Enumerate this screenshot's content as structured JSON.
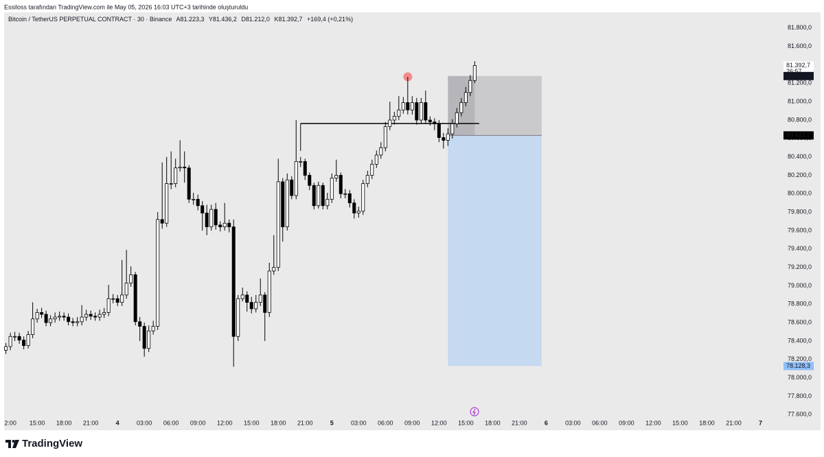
{
  "header": {
    "caption": "Essiloss tarafından TradingView.com ile May 05, 2026 16:03 UTC+3 tarihinde oluşturuldu"
  },
  "footer": {
    "brand": "TradingView"
  },
  "chart_data": {
    "type": "candlestick",
    "title": "Bitcoin / TetherUS PERPETUAL CONTRACT · 30 · Binance",
    "ohlc_legend": [
      "A81.223,3",
      "Y81.436,2",
      "D81.212,0",
      "K81.392,7"
    ],
    "change": "+169,4 (+0,21%)",
    "up_color": "#ffffff",
    "down_color": "#000000",
    "wick_color": "#000000",
    "x": [
      11.5,
      12,
      12.5,
      13,
      13.5,
      14,
      14.5,
      15,
      15.5,
      16,
      16.5,
      17,
      17.5,
      18,
      18.5,
      19,
      19.5,
      20,
      20.5,
      21,
      21.5,
      22,
      22.5,
      23,
      23.5,
      24,
      24.5,
      25,
      25.5,
      26,
      26.5,
      27,
      27.5,
      28,
      28.5,
      29,
      29.5,
      30,
      30.5,
      31,
      31.5,
      32,
      32.5,
      33,
      33.5,
      34,
      34.5,
      35,
      35.5,
      36,
      36.5,
      37,
      37.5,
      38,
      38.5,
      39,
      39.5,
      40,
      40.5,
      41,
      41.5,
      42,
      42.5,
      43,
      43.5,
      44,
      44.5,
      45,
      45.5,
      46,
      46.5,
      47,
      47.5,
      48,
      48.5,
      49,
      49.5,
      50,
      50.5,
      51,
      51.5,
      52,
      52.5,
      53,
      53.5,
      54,
      54.5,
      55,
      55.5,
      56,
      56.5,
      57,
      57.5,
      58,
      58.5,
      59,
      59.5,
      60,
      60.5,
      61,
      61.5,
      62,
      62.5,
      63,
      63.5,
      64
    ],
    "open": [
      78300,
      78340,
      78450,
      78450,
      78410,
      78350,
      78470,
      78640,
      78710,
      78690,
      78600,
      78640,
      78660,
      78670,
      78660,
      78610,
      78600,
      78610,
      78660,
      78690,
      78670,
      78660,
      78690,
      78710,
      78860,
      78860,
      78820,
      78900,
      79030,
      79120,
      78610,
      78560,
      78320,
      78510,
      78560,
      79720,
      79680,
      80110,
      80110,
      80280,
      80290,
      80280,
      79940,
      79940,
      79870,
      79790,
      79640,
      79830,
      79660,
      79640,
      79680,
      79640,
      78450,
      78860,
      78900,
      78820,
      78750,
      78820,
      78900,
      78710,
      79160,
      79200,
      80130,
      79640,
      80150,
      79980,
      80350,
      80350,
      80200,
      80090,
      79870,
      80090,
      79870,
      79940,
      80170,
      80200,
      80000,
      80000,
      79900,
      79790,
      79810,
      80110,
      80200,
      80320,
      80420,
      80500,
      80730,
      80800,
      80840,
      80910,
      80990,
      80910,
      80990,
      80800,
      80990,
      80800,
      80780,
      80760,
      80610,
      80580,
      80650,
      80760,
      80880,
      80990,
      81100,
      81230
    ],
    "high": [
      78380,
      78490,
      78500,
      78490,
      78450,
      78510,
      78820,
      78750,
      78760,
      78730,
      78680,
      78710,
      78720,
      78710,
      78700,
      78650,
      78660,
      78790,
      78740,
      78730,
      78710,
      78740,
      78760,
      79010,
      78910,
      78900,
      79280,
      79390,
      79210,
      79150,
      78660,
      78600,
      78570,
      78620,
      79800,
      80340,
      80400,
      80460,
      80380,
      80580,
      80460,
      80310,
      80010,
      79990,
      79920,
      79880,
      79880,
      79900,
      79700,
      79900,
      79720,
      79720,
      78900,
      78980,
      78940,
      78880,
      78900,
      79080,
      78930,
      79250,
      79550,
      80380,
      80170,
      80220,
      80190,
      80800,
      80400,
      80380,
      80230,
      80120,
      80130,
      80120,
      80010,
      80220,
      80370,
      80230,
      80050,
      80040,
      79940,
      79860,
      80150,
      80250,
      80370,
      80470,
      80560,
      80780,
      81000,
      80890,
      81060,
      81050,
      81270,
      81060,
      81040,
      81040,
      81120,
      80840,
      80820,
      80800,
      80660,
      80710,
      80810,
      80930,
      81040,
      81160,
      81290,
      81440
    ],
    "low": [
      78260,
      78300,
      78400,
      78370,
      78310,
      78320,
      78430,
      78600,
      78650,
      78560,
      78560,
      78600,
      78620,
      78620,
      78570,
      78560,
      78560,
      78570,
      78620,
      78630,
      78620,
      78620,
      78650,
      78670,
      78810,
      78780,
      78780,
      78860,
      78990,
      78570,
      78400,
      78230,
      78280,
      78470,
      78520,
      79620,
      79640,
      80050,
      80070,
      80240,
      80120,
      79900,
      79880,
      79820,
      79600,
      79550,
      79600,
      79610,
      79590,
      79600,
      79580,
      78120,
      78400,
      78830,
      78720,
      78700,
      78710,
      78780,
      78400,
      78660,
      79120,
      79160,
      79480,
      79600,
      79940,
      79940,
      80290,
      80150,
      80040,
      79830,
      79840,
      79830,
      79830,
      79900,
      80130,
      79950,
      79950,
      79850,
      79730,
      79740,
      79770,
      80070,
      80160,
      80280,
      80380,
      80460,
      80690,
      80750,
      80800,
      80870,
      80860,
      80860,
      80750,
      80760,
      80760,
      80740,
      80690,
      80560,
      80490,
      80520,
      80600,
      80720,
      80840,
      80950,
      81060,
      81200
    ],
    "close": [
      78340,
      78450,
      78450,
      78410,
      78350,
      78470,
      78640,
      78710,
      78690,
      78600,
      78640,
      78660,
      78670,
      78660,
      78610,
      78600,
      78610,
      78660,
      78690,
      78670,
      78660,
      78690,
      78710,
      78860,
      78860,
      78820,
      78900,
      79030,
      79120,
      78610,
      78560,
      78320,
      78510,
      78560,
      79720,
      79680,
      80110,
      80110,
      80280,
      80290,
      80280,
      79940,
      79940,
      79870,
      79790,
      79640,
      79830,
      79660,
      79640,
      79680,
      79640,
      78450,
      78860,
      78900,
      78820,
      78750,
      78820,
      78900,
      78710,
      79160,
      79200,
      80130,
      79640,
      80150,
      79980,
      80350,
      80350,
      80200,
      80090,
      79870,
      80090,
      79870,
      79940,
      80170,
      80200,
      80000,
      80000,
      79900,
      79790,
      79810,
      80110,
      80200,
      80320,
      80420,
      80500,
      80730,
      80800,
      80840,
      80910,
      80990,
      80910,
      80990,
      80800,
      80990,
      80800,
      80780,
      80760,
      80610,
      80580,
      80650,
      80760,
      80880,
      80990,
      81100,
      81230,
      81392.7
    ],
    "xlim": [
      11.3,
      98.5
    ],
    "ylim": [
      77580,
      81970
    ],
    "xticks": [
      {
        "value": 12,
        "label": "2:00"
      },
      {
        "value": 15,
        "label": "15:00"
      },
      {
        "value": 18,
        "label": "18:00"
      },
      {
        "value": 21,
        "label": "21:00"
      },
      {
        "value": 24,
        "label": "4"
      },
      {
        "value": 27,
        "label": "03:00"
      },
      {
        "value": 30,
        "label": "06:00"
      },
      {
        "value": 33,
        "label": "09:00"
      },
      {
        "value": 36,
        "label": "12:00"
      },
      {
        "value": 39,
        "label": "15:00"
      },
      {
        "value": 42,
        "label": "18:00"
      },
      {
        "value": 45,
        "label": "21:00"
      },
      {
        "value": 48,
        "label": "5"
      },
      {
        "value": 51,
        "label": "03:00"
      },
      {
        "value": 54,
        "label": "06:00"
      },
      {
        "value": 57,
        "label": "09:00"
      },
      {
        "value": 60,
        "label": "12:00"
      },
      {
        "value": 63,
        "label": "15:00"
      },
      {
        "value": 66,
        "label": "18:00"
      },
      {
        "value": 69,
        "label": "21:00"
      },
      {
        "value": 72,
        "label": "6"
      },
      {
        "value": 75,
        "label": "03:00"
      },
      {
        "value": 78,
        "label": "06:00"
      },
      {
        "value": 81,
        "label": "09:00"
      },
      {
        "value": 84,
        "label": "12:00"
      },
      {
        "value": 87,
        "label": "15:00"
      },
      {
        "value": 90,
        "label": "18:00"
      },
      {
        "value": 93,
        "label": "21:00"
      },
      {
        "value": 96,
        "label": "7"
      }
    ],
    "yticks": [
      {
        "value": 81800,
        "label": "81.800,0"
      },
      {
        "value": 81600,
        "label": "81.600,0"
      },
      {
        "value": 81400,
        "label": "81.400,0"
      },
      {
        "value": 81200,
        "label": "81.200,0"
      },
      {
        "value": 81000,
        "label": "81.000,0"
      },
      {
        "value": 80800,
        "label": "80.800,0"
      },
      {
        "value": 80600,
        "label": "80.600,0"
      },
      {
        "value": 80400,
        "label": "80.400,0"
      },
      {
        "value": 80200,
        "label": "80.200,0"
      },
      {
        "value": 80000,
        "label": "80.000,0"
      },
      {
        "value": 79800,
        "label": "79.800,0"
      },
      {
        "value": 79600,
        "label": "79.600,0"
      },
      {
        "value": 79400,
        "label": "79.400,0"
      },
      {
        "value": 79200,
        "label": "79.200,0"
      },
      {
        "value": 79000,
        "label": "79.000,0"
      },
      {
        "value": 78800,
        "label": "78.800,0"
      },
      {
        "value": 78600,
        "label": "78.600,0"
      },
      {
        "value": 78400,
        "label": "78.400,0"
      },
      {
        "value": 78200,
        "label": "78.200,0"
      },
      {
        "value": 78000,
        "label": "78.000,0"
      },
      {
        "value": 77800,
        "label": "77.800,0"
      },
      {
        "value": 77600,
        "label": "77.600,0"
      }
    ],
    "grid": false,
    "countdown": "26:57",
    "price_labels": [
      {
        "value": 81392.7,
        "label": "81.392,7",
        "color": "#ffffff"
      },
      {
        "value": 81278.2,
        "label": "81.278,2",
        "color": "#131722"
      },
      {
        "value": 80633.2,
        "label": "80.633,2",
        "color": "#000000"
      },
      {
        "value": 78128.3,
        "label": "78.128,3",
        "color": "#90bff9"
      }
    ],
    "position": {
      "x_start": 61,
      "x_end": 71.5,
      "entry": 80633.2,
      "target": 81278.2,
      "stop": 78128.3,
      "target_color": "#c4c4c7",
      "stop_color": "#c5d9f0"
    },
    "level_line": {
      "value": 80763,
      "x_start": 44.5,
      "x_end": 64.5,
      "color": "#000000"
    },
    "marker": {
      "x": 56.5,
      "value": 81270,
      "color": "#f28b8b"
    }
  }
}
